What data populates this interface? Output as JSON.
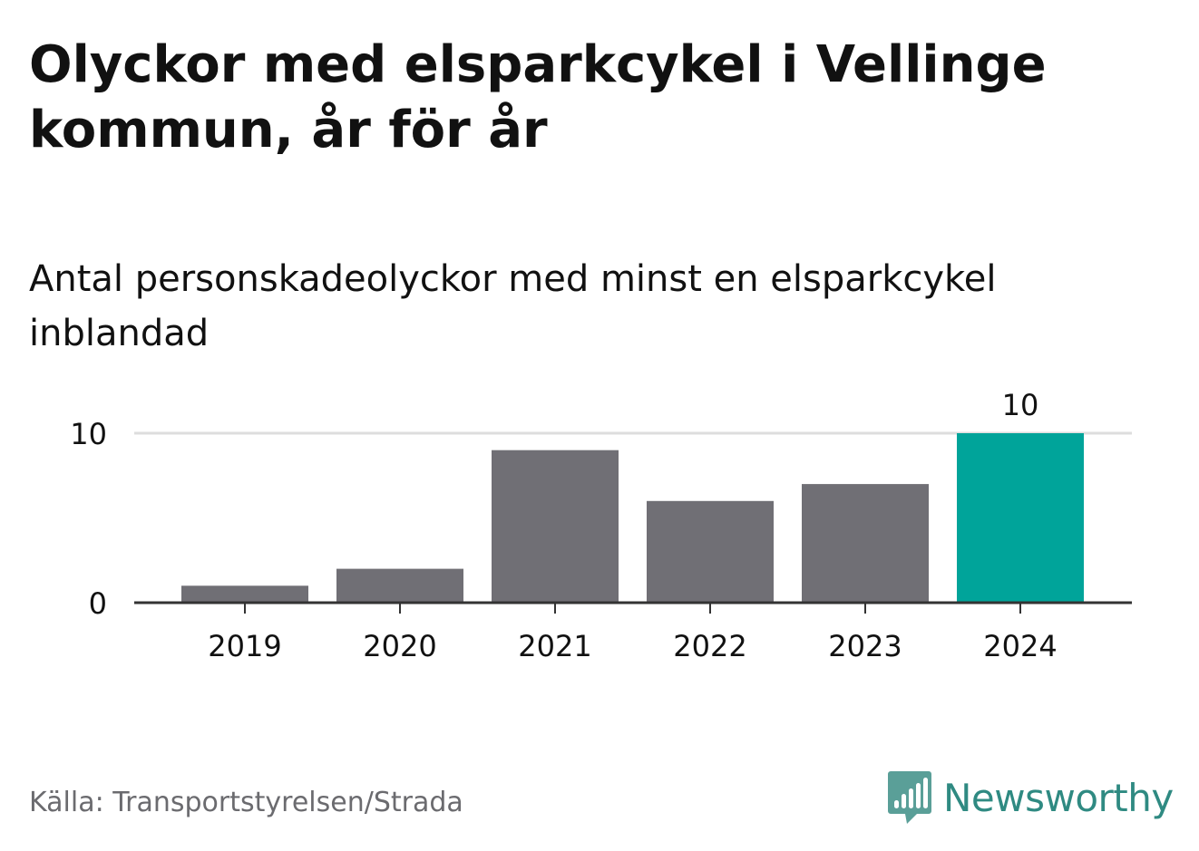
{
  "title": "Olyckor med elsparkcykel i Vellinge kommun, år för år",
  "subtitle": "Antal personskadeolyckor med minst en elsparkcykel inblandad",
  "source": "Källa: Transportstyrelsen/Strada",
  "brand": "Newsworthy",
  "colors": {
    "bar": "#706f75",
    "highlight": "#00a49a",
    "grid": "#dddddd",
    "axis": "#333333",
    "text": "#111111",
    "brand": "#2f8a82"
  },
  "chart_data": {
    "type": "bar",
    "categories": [
      "2019",
      "2020",
      "2021",
      "2022",
      "2023",
      "2024"
    ],
    "values": [
      1,
      2,
      9,
      6,
      7,
      10
    ],
    "highlight_index": 5,
    "value_labels": [
      {
        "index": 5,
        "text": "10"
      }
    ],
    "yticks": [
      0,
      10
    ],
    "ylim": [
      0,
      10
    ],
    "grid": true,
    "title": "Olyckor med elsparkcykel i Vellinge kommun, år för år",
    "subtitle": "Antal personskadeolyckor med minst en elsparkcykel inblandad",
    "xlabel": "",
    "ylabel": ""
  }
}
